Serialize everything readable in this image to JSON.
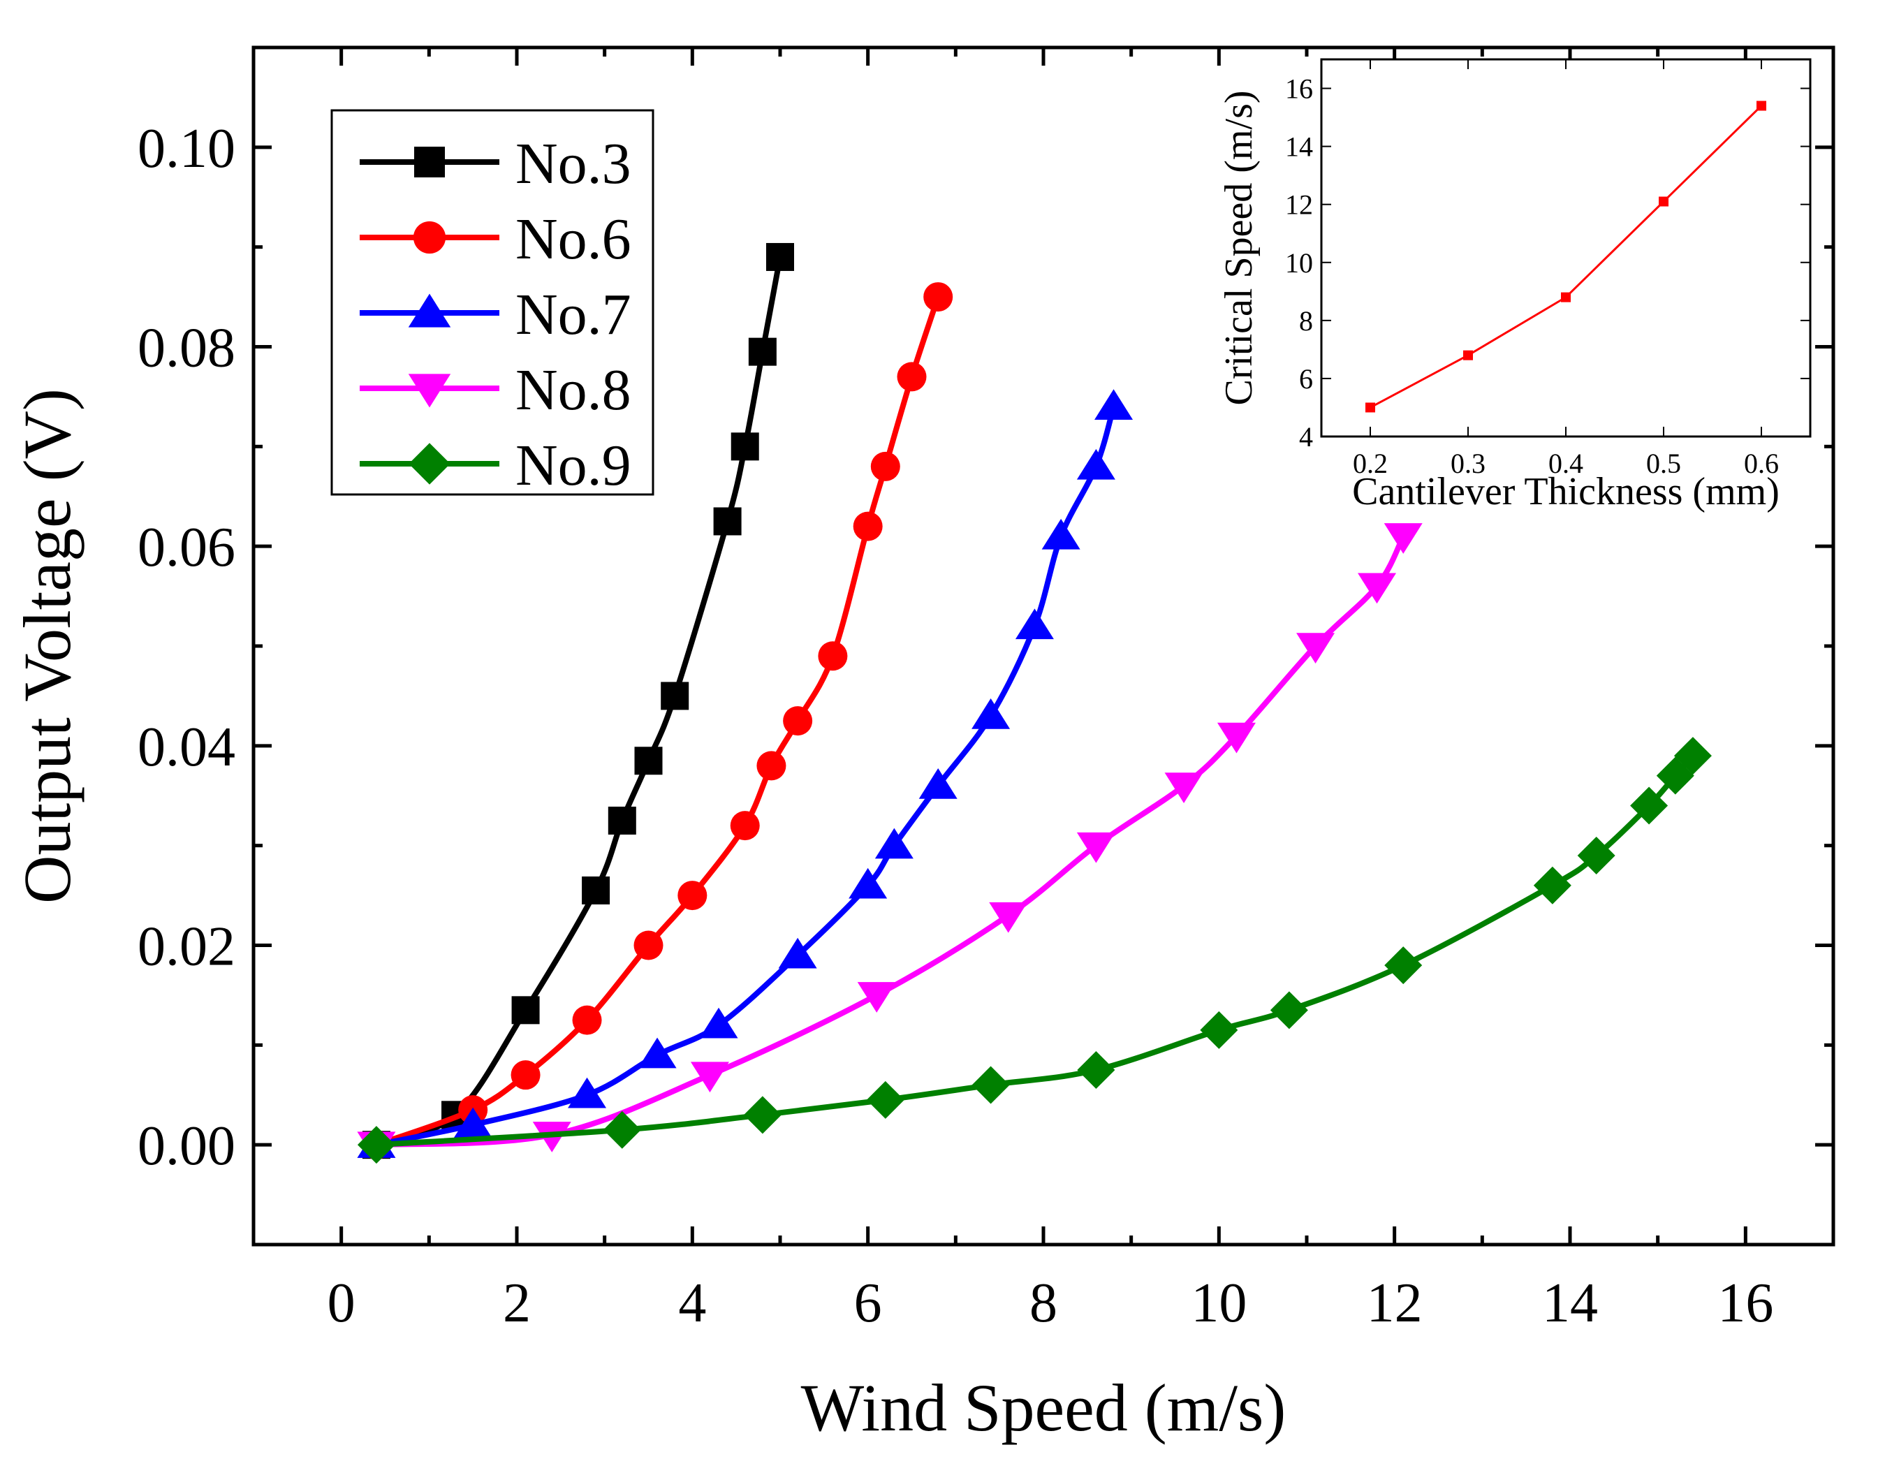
{
  "chart_data": [
    {
      "type": "line",
      "name": "main",
      "xlabel": "Wind Speed (m/s)",
      "ylabel": "Output Voltage (V)",
      "xlim": [
        -1,
        17
      ],
      "ylim": [
        -0.01,
        0.11
      ],
      "xticks": [
        0,
        2,
        4,
        6,
        8,
        10,
        12,
        14,
        16
      ],
      "xtick_labels": [
        "0",
        "2",
        "4",
        "6",
        "8",
        "10",
        "12",
        "14",
        "16"
      ],
      "yticks": [
        0.0,
        0.02,
        0.04,
        0.06,
        0.08,
        0.1
      ],
      "ytick_labels": [
        "0.00",
        "0.02",
        "0.04",
        "0.06",
        "0.08",
        "0.10"
      ],
      "legend_position": "top-left",
      "series": [
        {
          "name": "No.3",
          "color": "#000000",
          "marker": "square",
          "x": [
            0.4,
            1.3,
            2.1,
            2.9,
            3.2,
            3.5,
            3.8,
            4.4,
            4.6,
            4.8,
            5.0
          ],
          "y": [
            0.0,
            0.003,
            0.0135,
            0.0255,
            0.0325,
            0.0385,
            0.045,
            0.0625,
            0.07,
            0.0795,
            0.089
          ]
        },
        {
          "name": "No.6",
          "color": "#ff0000",
          "marker": "circle",
          "x": [
            0.4,
            1.5,
            2.1,
            2.8,
            3.5,
            4.0,
            4.6,
            4.9,
            5.2,
            5.6,
            6.0,
            6.2,
            6.5,
            6.8
          ],
          "y": [
            0.0,
            0.0035,
            0.007,
            0.0125,
            0.02,
            0.025,
            0.032,
            0.038,
            0.0425,
            0.049,
            0.062,
            0.068,
            0.077,
            0.085
          ]
        },
        {
          "name": "No.7",
          "color": "#0000ff",
          "marker": "triangle-up",
          "x": [
            0.4,
            1.5,
            2.8,
            3.6,
            4.3,
            5.2,
            6.0,
            6.3,
            6.8,
            7.4,
            7.9,
            8.2,
            8.6,
            8.8
          ],
          "y": [
            0.0,
            0.002,
            0.005,
            0.009,
            0.012,
            0.019,
            0.026,
            0.03,
            0.036,
            0.043,
            0.052,
            0.061,
            0.068,
            0.074
          ]
        },
        {
          "name": "No.8",
          "color": "#ff00ff",
          "marker": "triangle-down",
          "x": [
            0.4,
            2.4,
            4.2,
            6.1,
            7.6,
            8.6,
            9.6,
            10.2,
            11.1,
            11.8,
            12.1
          ],
          "y": [
            0.0,
            0.001,
            0.007,
            0.015,
            0.023,
            0.03,
            0.036,
            0.041,
            0.05,
            0.056,
            0.061
          ]
        },
        {
          "name": "No.9",
          "color": "#008000",
          "marker": "diamond",
          "x": [
            0.4,
            3.2,
            4.8,
            6.2,
            7.4,
            8.6,
            10.0,
            10.8,
            12.1,
            13.8,
            14.3,
            14.9,
            15.2,
            15.4
          ],
          "y": [
            0.0,
            0.0015,
            0.003,
            0.0045,
            0.006,
            0.0075,
            0.0115,
            0.0135,
            0.018,
            0.026,
            0.029,
            0.034,
            0.037,
            0.039
          ]
        }
      ]
    },
    {
      "type": "line",
      "name": "inset",
      "xlabel": "Cantilever Thickness (mm)",
      "ylabel": "Critical Speed (m/s)",
      "xlim": [
        0.15,
        0.65
      ],
      "ylim": [
        4,
        17
      ],
      "xticks": [
        0.2,
        0.3,
        0.4,
        0.5,
        0.6
      ],
      "xtick_labels": [
        "0.2",
        "0.3",
        "0.4",
        "0.5",
        "0.6"
      ],
      "yticks": [
        4,
        6,
        8,
        10,
        12,
        14,
        16
      ],
      "ytick_labels": [
        "4",
        "6",
        "8",
        "10",
        "12",
        "14",
        "16"
      ],
      "series": [
        {
          "name": "Critical Speed",
          "color": "#ff0000",
          "marker": "square",
          "x": [
            0.2,
            0.3,
            0.4,
            0.5,
            0.6
          ],
          "y": [
            5.0,
            6.8,
            8.8,
            12.1,
            15.4
          ]
        }
      ]
    }
  ]
}
